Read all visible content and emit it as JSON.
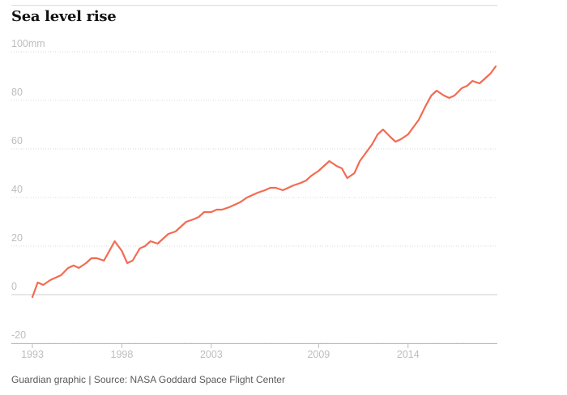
{
  "chart_data": {
    "type": "line",
    "title": "Sea level rise",
    "xlabel": "",
    "ylabel": "",
    "y_unit_label": "100mm",
    "ylim": [
      -20,
      100
    ],
    "xlim": [
      1993,
      2018.9
    ],
    "y_ticks": [
      100,
      80,
      60,
      40,
      20,
      0,
      -20
    ],
    "y_tick_labels": [
      "100mm",
      "80",
      "60",
      "40",
      "20",
      "0",
      "-20"
    ],
    "x_ticks": [
      1993,
      1998,
      2003,
      2009,
      2014
    ],
    "x_tick_labels": [
      "1993",
      "1998",
      "2003",
      "2009",
      "2014"
    ],
    "grid": "horizontal dotted",
    "line_color": "#f26b52",
    "series": [
      {
        "x": [
          1993.0,
          1993.3,
          1993.6,
          1994.0,
          1994.3,
          1994.6,
          1995.0,
          1995.3,
          1995.6,
          1996.0,
          1996.3,
          1996.6,
          1997.0,
          1997.3,
          1997.6,
          1998.0,
          1998.3,
          1998.6,
          1999.0,
          1999.3,
          1999.6,
          2000.0,
          2000.3,
          2000.6,
          2001.0,
          2001.3,
          2001.6,
          2002.0,
          2002.3,
          2002.6,
          2003.0,
          2003.3,
          2003.6,
          2004.0,
          2004.3,
          2004.6,
          2005.0,
          2005.3,
          2005.6,
          2006.0,
          2006.3,
          2006.6,
          2007.0,
          2007.3,
          2007.6,
          2008.0,
          2008.3,
          2008.6,
          2009.0,
          2009.3,
          2009.6,
          2010.0,
          2010.3,
          2010.6,
          2011.0,
          2011.3,
          2011.6,
          2012.0,
          2012.3,
          2012.6,
          2013.0,
          2013.3,
          2013.6,
          2014.0,
          2014.3,
          2014.6,
          2015.0,
          2015.3,
          2015.6,
          2016.0,
          2016.3,
          2016.6,
          2017.0,
          2017.3,
          2017.6,
          2018.0,
          2018.3,
          2018.6,
          2018.9
        ],
        "values": [
          -1,
          5,
          4,
          6,
          7,
          8,
          11,
          12,
          11,
          13,
          15,
          15,
          14,
          18,
          22,
          18,
          13,
          14,
          19,
          20,
          22,
          21,
          23,
          25,
          26,
          28,
          30,
          31,
          32,
          34,
          34,
          35,
          35,
          36,
          37,
          38,
          40,
          41,
          42,
          43,
          44,
          44,
          43,
          44,
          45,
          46,
          47,
          49,
          51,
          53,
          55,
          53,
          52,
          48,
          50,
          55,
          58,
          62,
          66,
          68,
          65,
          63,
          64,
          66,
          69,
          72,
          78,
          82,
          84,
          82,
          81,
          82,
          85,
          86,
          88,
          87,
          89,
          91,
          94
        ]
      }
    ],
    "footer": "Guardian graphic | Source: NASA Goddard Space Flight Center"
  }
}
